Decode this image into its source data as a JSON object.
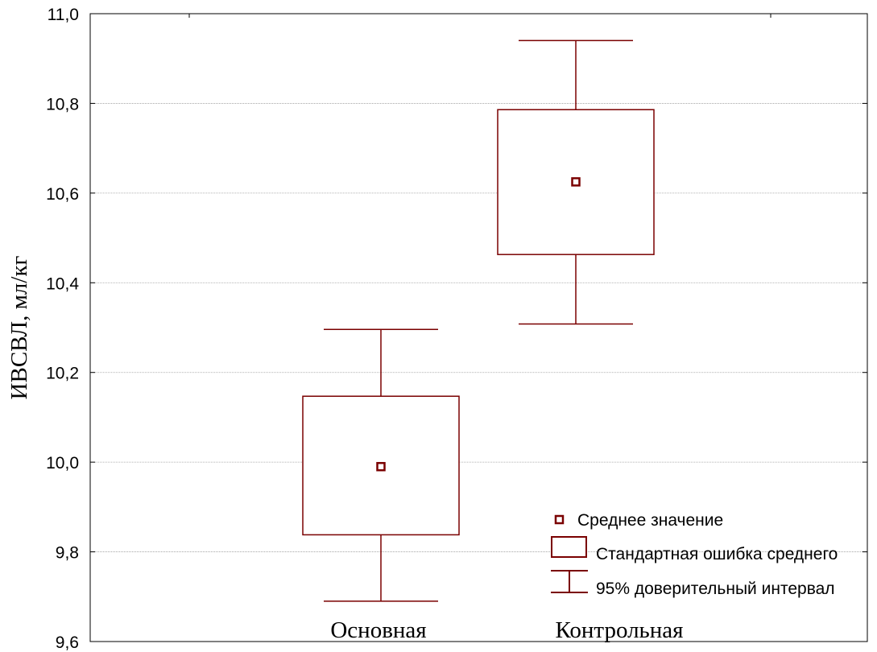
{
  "chart_data": {
    "type": "box",
    "title": "",
    "xlabel": "",
    "ylabel": "ИВСВЛ, мл/кг",
    "ylim": [
      9.6,
      11.0
    ],
    "yticks": [
      "9,6",
      "9,8",
      "10,0",
      "10,2",
      "10,4",
      "10,6",
      "10,8",
      "11,0"
    ],
    "ytick_values": [
      9.6,
      9.8,
      10.0,
      10.2,
      10.4,
      10.6,
      10.8,
      11.0
    ],
    "grid": true,
    "legend_position": "bottom-right",
    "categories": [
      "Основная",
      "Контрольная"
    ],
    "series": [
      {
        "name": "Среднее значение",
        "values": [
          9.99,
          10.625
        ]
      },
      {
        "name": "Стандартная ошибка среднего",
        "low": [
          9.838,
          10.463
        ],
        "high": [
          10.147,
          10.786
        ]
      },
      {
        "name": "95% доверительный интервал",
        "low": [
          9.69,
          10.308
        ],
        "high": [
          10.296,
          10.94
        ]
      }
    ],
    "color": "#7a0000"
  }
}
